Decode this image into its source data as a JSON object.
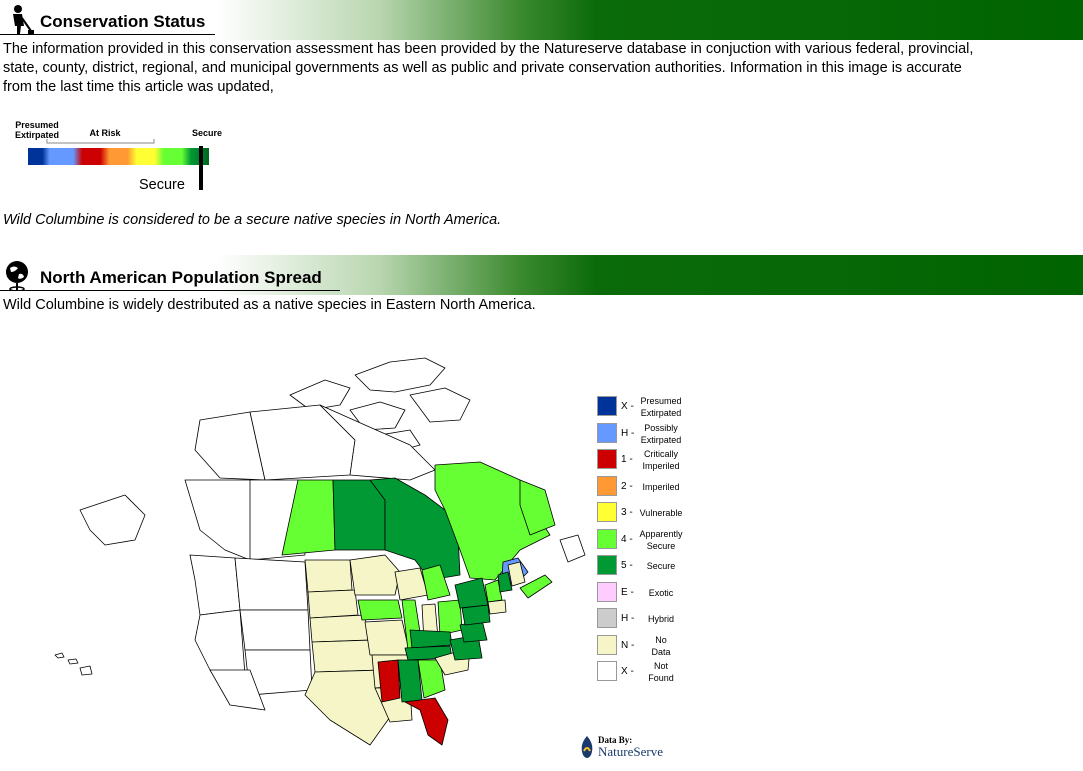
{
  "conservation": {
    "title": "Conservation Status",
    "paragraph": "The information provided in this conservation assessment has been provided by the Natureserve  database in conjuction with various federal, provincial,\n state, county, district, regional, and  municipal governments as well as public and private conservation authorities. Information in this image is accurate\n from the last time this article was updated,",
    "scale": {
      "label_presumed": "Presumed\nExtirpated",
      "label_at_risk": "At Risk",
      "label_secure": "Secure",
      "status_text": "Secure",
      "status_fraction": 0.955
    },
    "statement": "Wild Columbine is considered to be a secure native species in North America."
  },
  "population": {
    "title": "North American Population Spread",
    "paragraph": "Wild Columbine is widely destributed as a native species in Eastern North America."
  },
  "legend": [
    {
      "code": "X -",
      "label": "Presumed\nExtirpated",
      "color": "#003399"
    },
    {
      "code": "H -",
      "label": "Possibly\nExtirpated",
      "color": "#6699ff"
    },
    {
      "code": "1 -",
      "label": "Critically\nImperiled",
      "color": "#cc0000"
    },
    {
      "code": "2 -",
      "label": "Imperiled",
      "color": "#ff9933"
    },
    {
      "code": "3 -",
      "label": "Vulnerable",
      "color": "#ffff33"
    },
    {
      "code": "4 -",
      "label": "Apparently\nSecure",
      "color": "#66ff33"
    },
    {
      "code": "5 -",
      "label": "Secure",
      "color": "#009933"
    },
    {
      "code": "E -",
      "label": "Exotic",
      "color": "#ffccff"
    },
    {
      "code": "H -",
      "label": "Hybrid",
      "color": "#cccccc"
    },
    {
      "code": "N -",
      "label": "No\nData",
      "color": "#f5f5c8"
    },
    {
      "code": "X -",
      "label": "Not\nFound",
      "color": "#ffffff"
    }
  ],
  "credit": {
    "line1": "Data By:",
    "line2": "NatureServe"
  },
  "colors": {
    "header_green": "#006400",
    "secure": "#009933",
    "apparently_secure": "#66ff33",
    "critically_imperiled": "#cc0000",
    "possibly_extirpated": "#6699ff",
    "no_data": "#f5f5c8"
  },
  "icons": {
    "conservation": "gardener-icon",
    "population": "globe-pin-icon",
    "credit": "natureserve-logo-icon"
  }
}
